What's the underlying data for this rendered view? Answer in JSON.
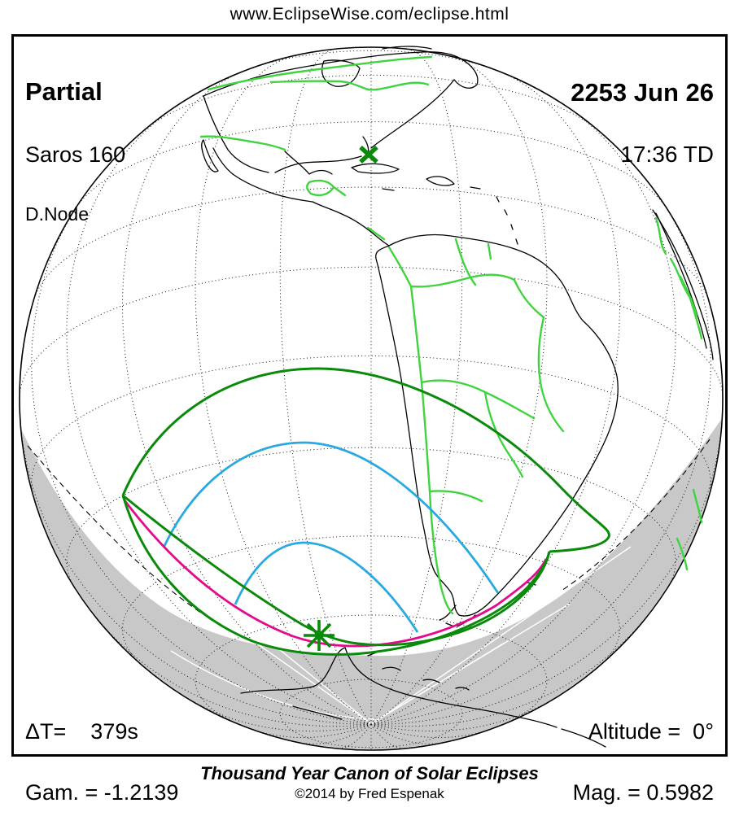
{
  "page": {
    "url_title": "www.EclipseWise.com/eclipse.html"
  },
  "eclipse": {
    "type": "Partial",
    "saros": "Saros 160",
    "node": "D.Node",
    "date": "2253 Jun 26",
    "time": "17:36 TD",
    "delta_t": "ΔT=    379s",
    "gamma": "Gam. = -1.2139",
    "altitude": "Altitude =  0°",
    "magnitude": "Mag. = 0.5982"
  },
  "footer": {
    "title": "Thousand Year Canon of Solar Eclipses",
    "copyright": "©2014 by Fred Espenak"
  },
  "map": {
    "projection": "orthographic globe centered on the Americas",
    "markers": [
      {
        "name": "sub-solar-point",
        "symbol": "x-mark"
      },
      {
        "name": "greatest-eclipse-point",
        "symbol": "asterisk"
      }
    ],
    "colors": {
      "eclipse_limit_green": "#0a8a0a",
      "contour_blue": "#29a9e1",
      "horizon_magenta": "#e5098c",
      "country_border_green": "#3fd43f",
      "night_shade_gray": "#c8c8c8",
      "coast_black": "#000000"
    }
  }
}
